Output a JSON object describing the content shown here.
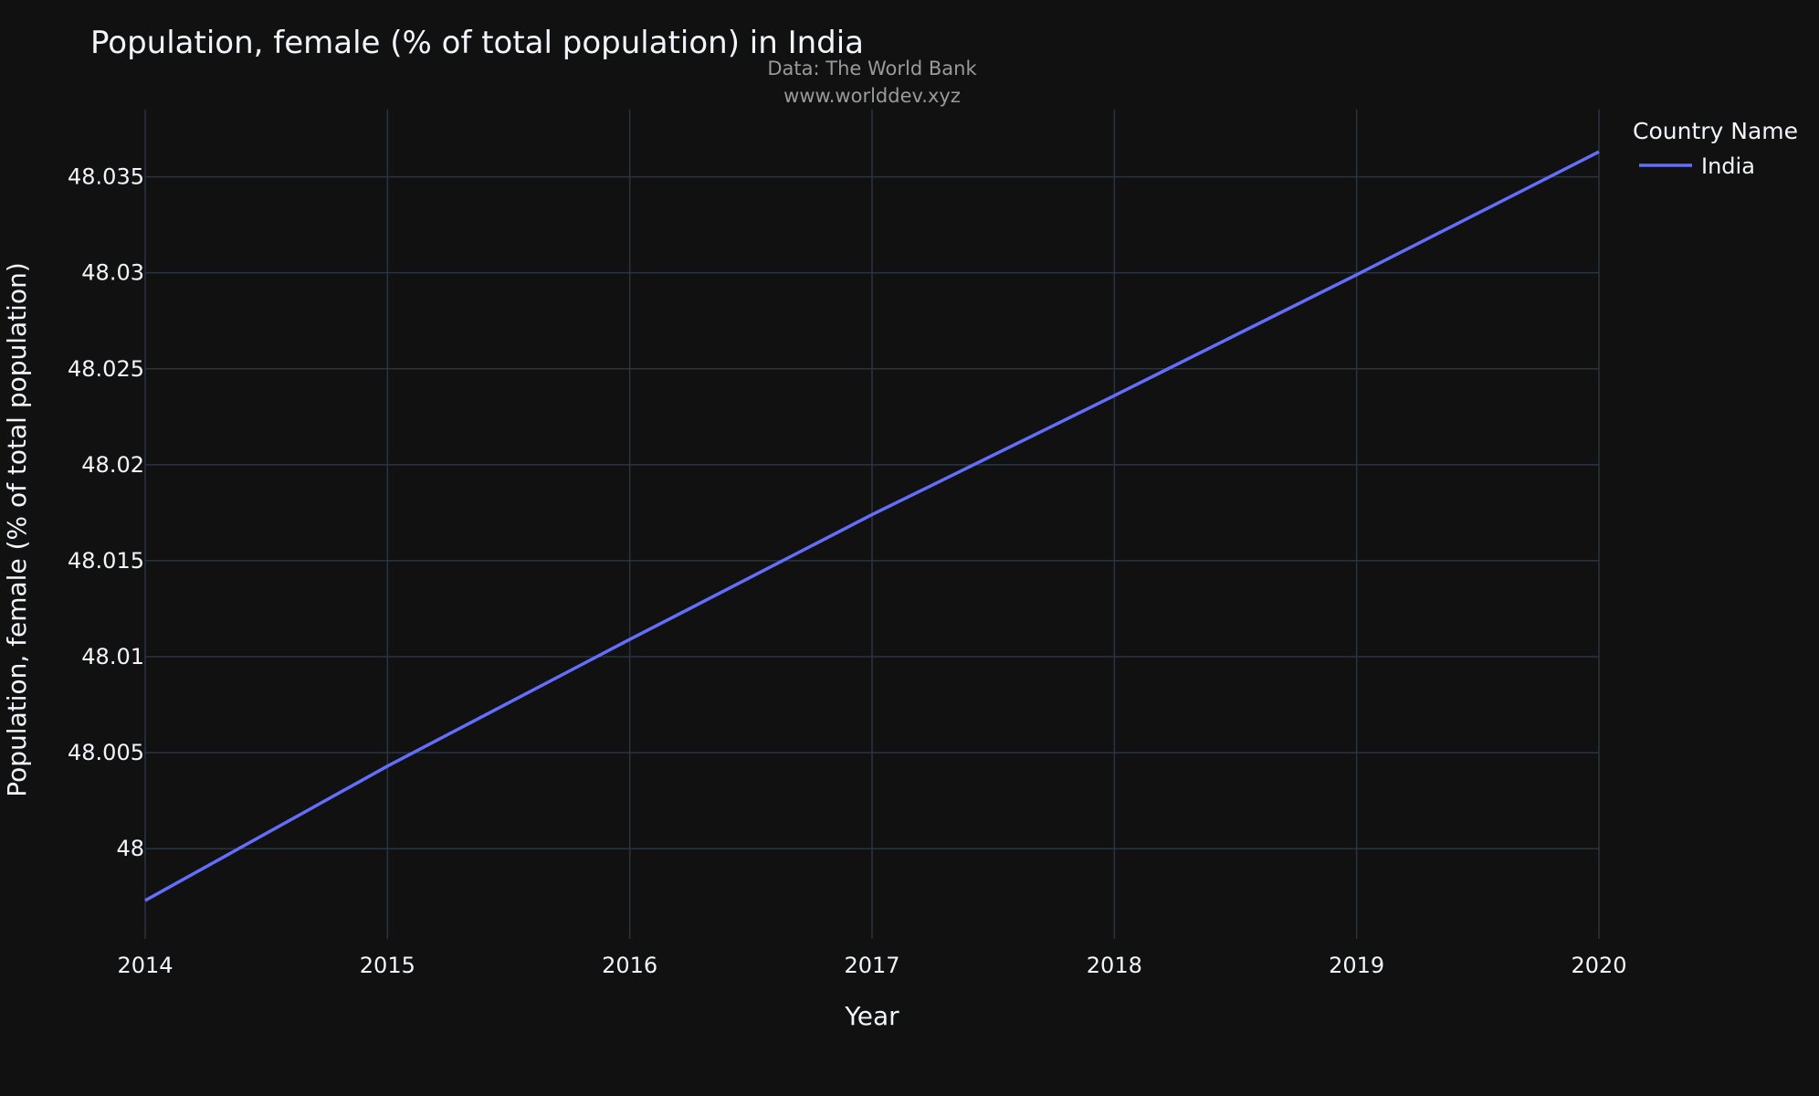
{
  "header": {
    "title": "Population, female (% of total population) in India",
    "source_line_1": "Data: The World Bank",
    "source_line_2": "www.worlddev.xyz"
  },
  "colors": {
    "background": "#111111",
    "grid": "#283442",
    "text": "#f2f5fa",
    "series_india": "#636efa"
  },
  "chart_data": {
    "type": "line",
    "title": "Population, female (% of total population) in India",
    "xlabel": "Year",
    "ylabel": "Population, female (% of total population)",
    "x": [
      2014,
      2015,
      2016,
      2017,
      2018,
      2019,
      2020
    ],
    "x_ticks": [
      "2014",
      "2015",
      "2016",
      "2017",
      "2018",
      "2019",
      "2020"
    ],
    "y_ticks": [
      "48",
      "48.005",
      "48.01",
      "48.015",
      "48.02",
      "48.025",
      "48.03",
      "48.035"
    ],
    "xlim": [
      2014,
      2020
    ],
    "ylim": [
      47.9953,
      48.0385
    ],
    "grid": true,
    "legend_title": "Country Name",
    "legend_position": "top-right",
    "series": [
      {
        "name": "India",
        "color": "#636efa",
        "values": [
          47.9973,
          48.0043,
          48.0109,
          48.0174,
          48.0236,
          48.0299,
          48.0363
        ]
      }
    ]
  }
}
